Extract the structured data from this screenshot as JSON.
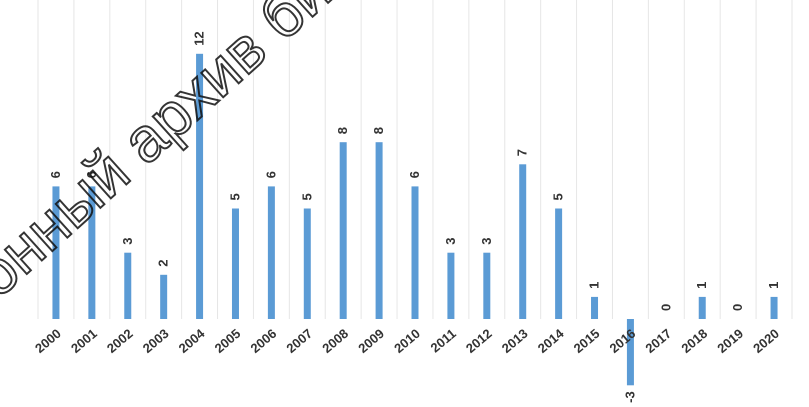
{
  "chart_data": {
    "type": "bar",
    "categories": [
      "2000",
      "2001",
      "2002",
      "2003",
      "2004",
      "2005",
      "2006",
      "2007",
      "2008",
      "2009",
      "2010",
      "2011",
      "2012",
      "2013",
      "2014",
      "2015",
      "2016",
      "2017",
      "2018",
      "2019",
      "2020"
    ],
    "series": [
      {
        "values": [
          6,
          6,
          3,
          2,
          12,
          5,
          6,
          5,
          8,
          8,
          6,
          3,
          3,
          7,
          5,
          1,
          -3,
          0,
          1,
          0,
          1
        ]
      }
    ],
    "ylim": [
      -3,
      12
    ],
    "grid": "vertical",
    "legend": "none",
    "colors": {
      "bar": "#5b9bd5",
      "grid": "#e6e6e6",
      "text": "#333333"
    }
  },
  "watermark": {
    "text": "онный архив библи"
  }
}
